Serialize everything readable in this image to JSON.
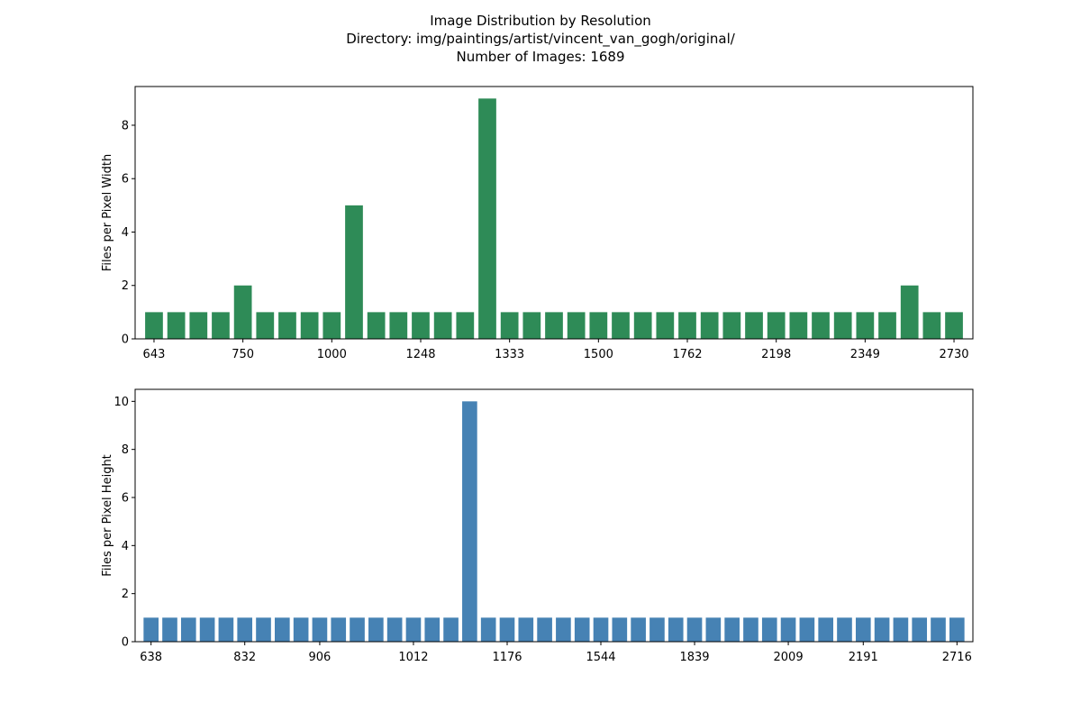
{
  "title_lines": [
    "Image Distribution by Resolution",
    "Directory: img/paintings/artist/vincent_van_gogh/original/",
    "Number of Images: 1689"
  ],
  "chart_data": [
    {
      "type": "bar",
      "ylabel": "Files per Pixel Width",
      "color": "#2e8b57",
      "ylim": [
        0,
        9.45
      ],
      "yticks": [
        0,
        2,
        4,
        6,
        8
      ],
      "num_bars": 37,
      "values": [
        1,
        1,
        1,
        1,
        2,
        1,
        1,
        1,
        1,
        5,
        1,
        1,
        1,
        1,
        1,
        9,
        1,
        1,
        1,
        1,
        1,
        1,
        1,
        1,
        1,
        1,
        1,
        1,
        1,
        1,
        1,
        1,
        1,
        1,
        2,
        1,
        1
      ],
      "tick_positions": [
        0,
        4,
        8,
        12,
        16,
        20,
        24,
        28,
        32,
        36
      ],
      "tick_labels": [
        "643",
        "750",
        "1000",
        "1248",
        "1333",
        "1500",
        "1762",
        "2198",
        "2349",
        "2730"
      ]
    },
    {
      "type": "bar",
      "ylabel": "Files per Pixel Height",
      "color": "#4682b4",
      "ylim": [
        0,
        10.5
      ],
      "yticks": [
        0,
        2,
        4,
        6,
        8,
        10
      ],
      "num_bars": 44,
      "values": [
        1,
        1,
        1,
        1,
        1,
        1,
        1,
        1,
        1,
        1,
        1,
        1,
        1,
        1,
        1,
        1,
        1,
        10,
        1,
        1,
        1,
        1,
        1,
        1,
        1,
        1,
        1,
        1,
        1,
        1,
        1,
        1,
        1,
        1,
        1,
        1,
        1,
        1,
        1,
        1,
        1,
        1,
        1,
        1
      ],
      "tick_positions": [
        0,
        5,
        9,
        14,
        19,
        24,
        29,
        34,
        38,
        43
      ],
      "tick_labels": [
        "638",
        "832",
        "906",
        "1012",
        "1176",
        "1544",
        "1839",
        "2009",
        "2191",
        "2716"
      ]
    }
  ]
}
